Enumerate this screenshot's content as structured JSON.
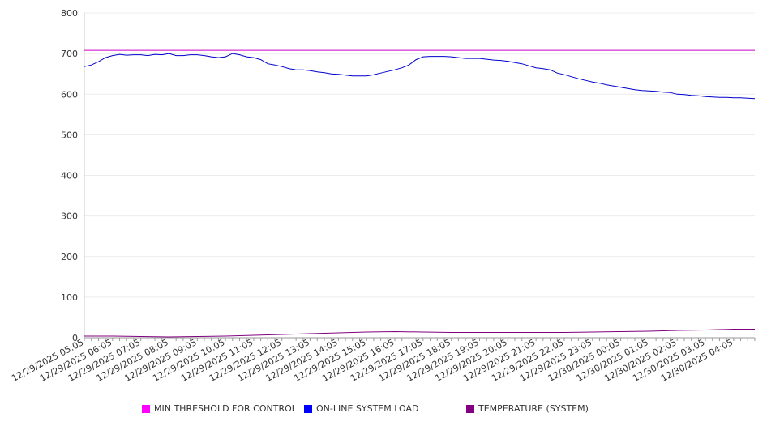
{
  "chart_data": {
    "type": "line",
    "title": "",
    "xlabel": "",
    "ylabel": "",
    "ylim": [
      0,
      800
    ],
    "y_ticks": [
      0,
      100,
      200,
      300,
      400,
      500,
      600,
      700,
      800
    ],
    "x_tick_labels": [
      "12/29/2025 05:05",
      "12/29/2025 06:05",
      "12/29/2025 07:05",
      "12/29/2025 08:05",
      "12/29/2025 09:05",
      "12/29/2025 10:05",
      "12/29/2025 11:05",
      "12/29/2025 12:05",
      "12/29/2025 13:05",
      "12/29/2025 14:05",
      "12/29/2025 15:05",
      "12/29/2025 16:05",
      "12/29/2025 17:05",
      "12/29/2025 18:05",
      "12/29/2025 19:05",
      "12/29/2025 20:05",
      "12/29/2025 21:05",
      "12/29/2025 22:05",
      "12/29/2025 23:05",
      "12/30/2025 00:05",
      "12/30/2025 01:05",
      "12/30/2025 02:05",
      "12/30/2025 03:05",
      "12/30/2025 04:05"
    ],
    "grid": true,
    "legend_position": "bottom",
    "series": [
      {
        "name": "MIN THRESHOLD FOR CONTROL",
        "color": "#cc00cc",
        "x": [
          "12/29/2025 05:05",
          "12/30/2025 04:50"
        ],
        "values": [
          708,
          708
        ]
      },
      {
        "name": "ON-LINE SYSTEM LOAD",
        "color": "#0000cc",
        "x": [
          "12/29/2025 05:05",
          "12/29/2025 05:20",
          "12/29/2025 05:35",
          "12/29/2025 05:50",
          "12/29/2025 06:05",
          "12/29/2025 06:20",
          "12/29/2025 06:35",
          "12/29/2025 06:50",
          "12/29/2025 07:05",
          "12/29/2025 07:20",
          "12/29/2025 07:35",
          "12/29/2025 07:50",
          "12/29/2025 08:05",
          "12/29/2025 08:20",
          "12/29/2025 08:35",
          "12/29/2025 08:50",
          "12/29/2025 09:05",
          "12/29/2025 09:20",
          "12/29/2025 09:35",
          "12/29/2025 09:50",
          "12/29/2025 10:05",
          "12/29/2025 10:20",
          "12/29/2025 10:35",
          "12/29/2025 10:50",
          "12/29/2025 11:05",
          "12/29/2025 11:20",
          "12/29/2025 11:35",
          "12/29/2025 11:50",
          "12/29/2025 12:05",
          "12/29/2025 12:20",
          "12/29/2025 12:35",
          "12/29/2025 12:50",
          "12/29/2025 13:05",
          "12/29/2025 13:20",
          "12/29/2025 13:35",
          "12/29/2025 13:50",
          "12/29/2025 14:05",
          "12/29/2025 14:20",
          "12/29/2025 14:35",
          "12/29/2025 14:50",
          "12/29/2025 15:05",
          "12/29/2025 15:20",
          "12/29/2025 15:35",
          "12/29/2025 15:50",
          "12/29/2025 16:05",
          "12/29/2025 16:20",
          "12/29/2025 16:35",
          "12/29/2025 16:50",
          "12/29/2025 17:05",
          "12/29/2025 17:20",
          "12/29/2025 17:35",
          "12/29/2025 17:50",
          "12/29/2025 18:05",
          "12/29/2025 18:20",
          "12/29/2025 18:35",
          "12/29/2025 18:50",
          "12/29/2025 19:05",
          "12/29/2025 19:20",
          "12/29/2025 19:35",
          "12/29/2025 19:50",
          "12/29/2025 20:05",
          "12/29/2025 20:20",
          "12/29/2025 20:35",
          "12/29/2025 20:50",
          "12/29/2025 21:05",
          "12/29/2025 21:20",
          "12/29/2025 21:35",
          "12/29/2025 21:50",
          "12/29/2025 22:05",
          "12/29/2025 22:20",
          "12/29/2025 22:35",
          "12/29/2025 22:50",
          "12/29/2025 23:05",
          "12/29/2025 23:20",
          "12/29/2025 23:35",
          "12/29/2025 23:50",
          "12/30/2025 00:05",
          "12/30/2025 00:20",
          "12/30/2025 00:35",
          "12/30/2025 00:50",
          "12/30/2025 01:05",
          "12/30/2025 01:20",
          "12/30/2025 01:35",
          "12/30/2025 01:50",
          "12/30/2025 02:05",
          "12/30/2025 02:20",
          "12/30/2025 02:35",
          "12/30/2025 02:50",
          "12/30/2025 03:05",
          "12/30/2025 03:20",
          "12/30/2025 03:35",
          "12/30/2025 03:50",
          "12/30/2025 04:05",
          "12/30/2025 04:20",
          "12/30/2025 04:35",
          "12/30/2025 04:50"
        ],
        "values": [
          668,
          672,
          680,
          690,
          695,
          698,
          696,
          697,
          697,
          695,
          698,
          697,
          700,
          695,
          695,
          697,
          697,
          695,
          692,
          690,
          692,
          700,
          697,
          692,
          690,
          685,
          675,
          672,
          668,
          663,
          660,
          660,
          658,
          655,
          653,
          650,
          649,
          647,
          645,
          645,
          645,
          648,
          652,
          656,
          660,
          665,
          672,
          685,
          692,
          693,
          693,
          693,
          692,
          690,
          688,
          688,
          688,
          686,
          684,
          683,
          681,
          678,
          675,
          670,
          665,
          663,
          660,
          652,
          648,
          643,
          638,
          634,
          630,
          627,
          623,
          620,
          617,
          614,
          611,
          609,
          608,
          607,
          605,
          604,
          600,
          599,
          597,
          596,
          594,
          593,
          592,
          592,
          591,
          591,
          590,
          589
        ]
      },
      {
        "name": "TEMPERATURE (SYSTEM)",
        "color": "#800080",
        "x": [
          "12/29/2025 05:05",
          "12/29/2025 06:05",
          "12/29/2025 07:05",
          "12/29/2025 08:05",
          "12/29/2025 09:05",
          "12/29/2025 10:05",
          "12/29/2025 11:05",
          "12/29/2025 12:05",
          "12/29/2025 13:05",
          "12/29/2025 14:05",
          "12/29/2025 15:05",
          "12/29/2025 16:05",
          "12/29/2025 17:05",
          "12/29/2025 18:05",
          "12/29/2025 19:05",
          "12/29/2025 20:05",
          "12/29/2025 21:05",
          "12/29/2025 22:05",
          "12/29/2025 23:05",
          "12/30/2025 00:05",
          "12/30/2025 01:05",
          "12/30/2025 02:05",
          "12/30/2025 03:05",
          "12/30/2025 04:05",
          "12/30/2025 04:50"
        ],
        "values": [
          4,
          4,
          3,
          2,
          3,
          4,
          6,
          8,
          10,
          12,
          14,
          15,
          14,
          13,
          13,
          13,
          13,
          13,
          14,
          15,
          16,
          18,
          19,
          21,
          21
        ]
      }
    ]
  }
}
